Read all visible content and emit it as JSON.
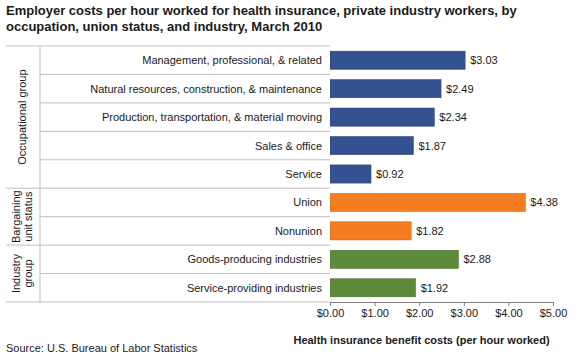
{
  "chart_data": {
    "type": "bar",
    "orientation": "horizontal",
    "title": "Employer costs per hour worked for health insurance, private industry workers, by occupation, union status, and industry, March 2010",
    "x_label": "Health insurance benefit costs (per hour worked)",
    "source": "Source: U.S. Bureau of Labor Statistics",
    "categories": [
      "Management, professional, & related",
      "Natural resources, construction, & maintenance",
      "Production, transportation, & material moving",
      "Sales & office",
      "Service",
      "Union",
      "Nonunion",
      "Goods-producing industries",
      "Service-providing industries"
    ],
    "values": [
      3.03,
      2.49,
      2.34,
      1.87,
      0.92,
      4.38,
      1.82,
      2.88,
      1.92
    ],
    "value_labels": [
      "$3.03",
      "$2.49",
      "$2.34",
      "$1.87",
      "$0.92",
      "$4.38",
      "$1.82",
      "$2.88",
      "$1.92"
    ],
    "colors": [
      "#34528f",
      "#34528f",
      "#34528f",
      "#34528f",
      "#34528f",
      "#f47d20",
      "#f47d20",
      "#5e8a3b",
      "#5e8a3b"
    ],
    "groups": [
      {
        "label": "Occupational group",
        "categories": [
          "Management, professional, & related",
          "Natural resources, construction, & maintenance",
          "Production, transportation, & material moving",
          "Sales & office",
          "Service"
        ]
      },
      {
        "label": "Bargaining unit status",
        "categories": [
          "Union",
          "Nonunion"
        ]
      },
      {
        "label": "Industry group",
        "categories": [
          "Goods-producing industries",
          "Service-providing industries"
        ]
      }
    ],
    "xlim": [
      0,
      5
    ],
    "xticks": [
      {
        "value": 0,
        "label": "$0.00"
      },
      {
        "value": 1,
        "label": "$1.00"
      },
      {
        "value": 2,
        "label": "$2.00"
      },
      {
        "value": 3,
        "label": "$3.00"
      },
      {
        "value": 4,
        "label": "$4.00"
      },
      {
        "value": 5,
        "label": "$5.00"
      }
    ],
    "grid": false,
    "data_labels": true
  }
}
